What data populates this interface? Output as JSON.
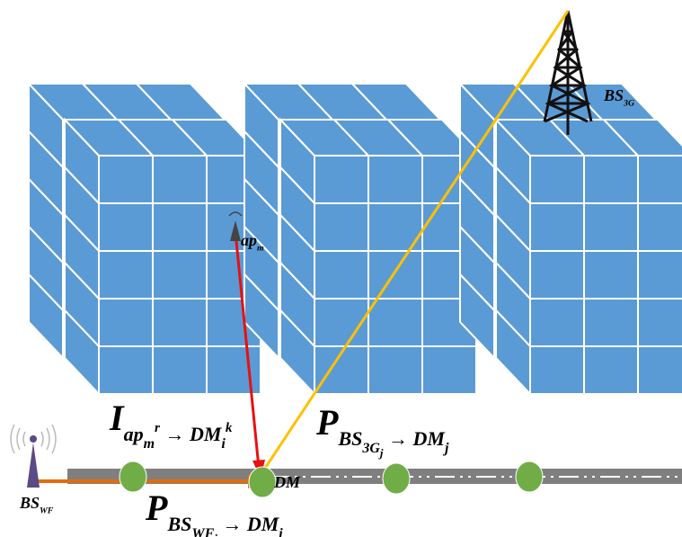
{
  "labels": [
    {
      "parts": [
        {
          "base": "BS"
        },
        {
          "sub": "3G"
        }
      ]
    },
    {
      "parts": [
        {
          "base": "ap"
        },
        {
          "sub": "m"
        }
      ]
    },
    {
      "parts": [
        {
          "base": "I"
        },
        {
          "sub": "ap"
        },
        {
          "subsub": "m"
        },
        {
          "subsup": "r"
        },
        {
          "sub": " → DM"
        },
        {
          "subsub": "i"
        },
        {
          "subsup": "k"
        }
      ]
    },
    {
      "parts": [
        {
          "base": "P"
        },
        {
          "sub": "BS"
        },
        {
          "subsub": "3G"
        },
        {
          "subsubsub": "j"
        },
        {
          "sub": " → DM"
        },
        {
          "subsub": "j"
        }
      ]
    },
    {
      "parts": [
        {
          "base": "DM"
        }
      ]
    },
    {
      "parts": [
        {
          "base": "P"
        },
        {
          "sub": "BS"
        },
        {
          "subsub": "WF"
        },
        {
          "subsubsub": "i"
        },
        {
          "sub": " → DM"
        },
        {
          "subsub": "i"
        }
      ]
    },
    {
      "parts": [
        {
          "base": "BS"
        },
        {
          "sub": "WF"
        }
      ]
    }
  ]
}
